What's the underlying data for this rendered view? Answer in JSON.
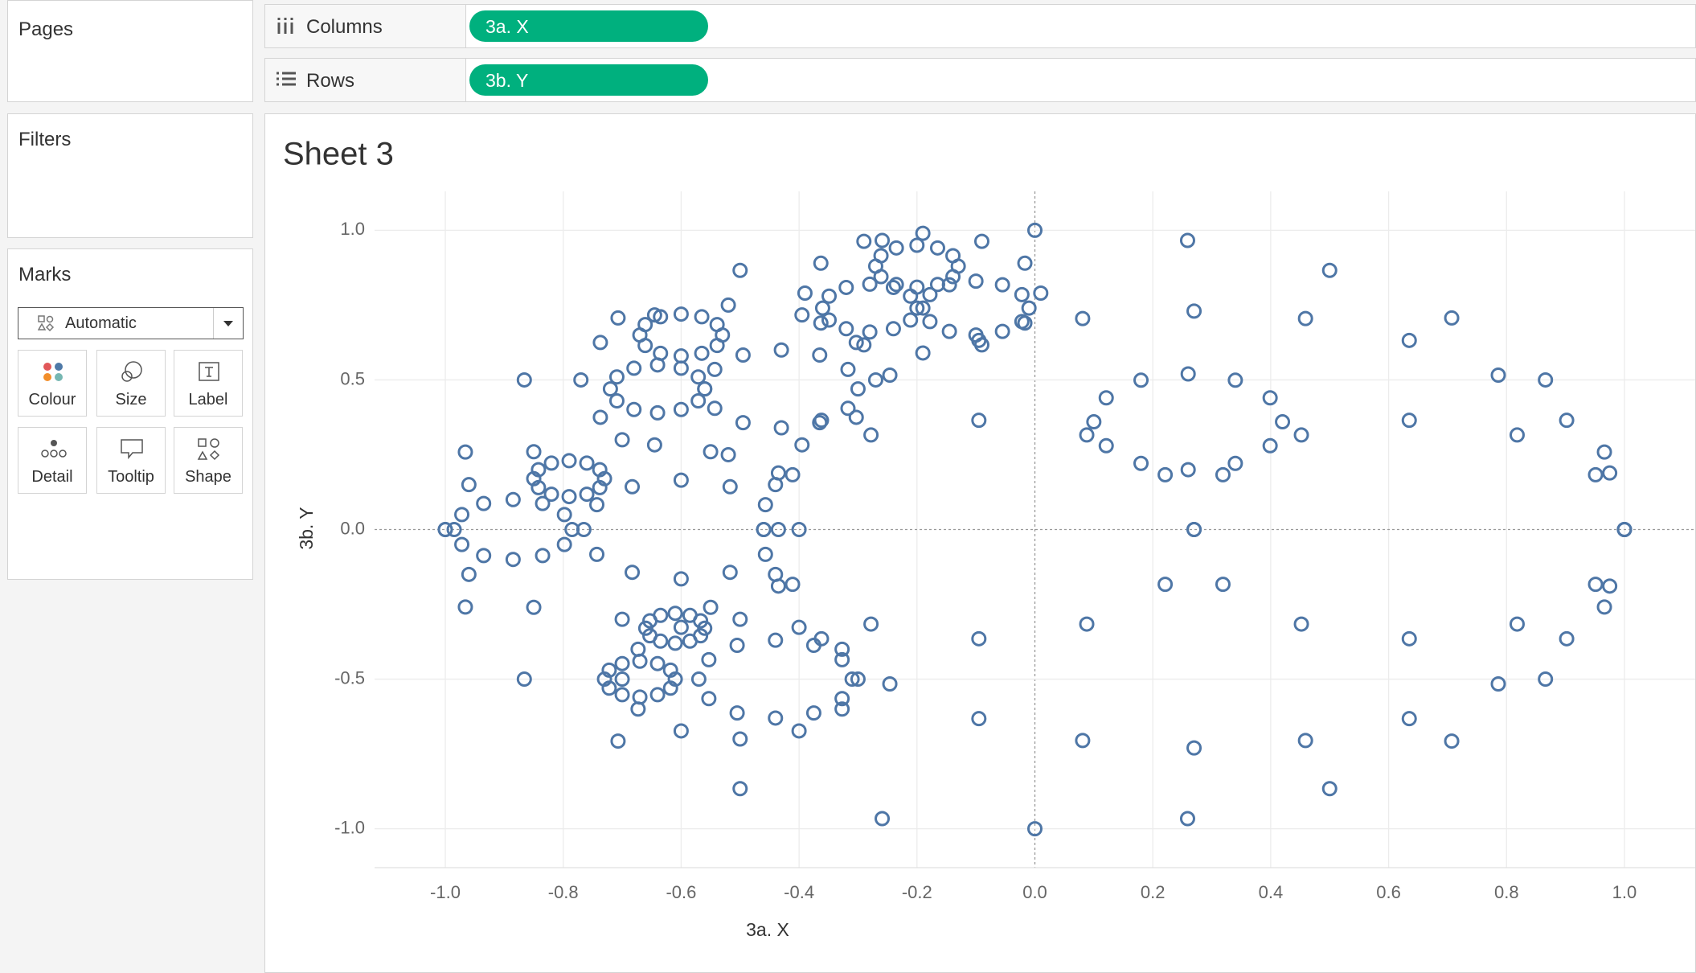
{
  "ui": {
    "pages": "Pages",
    "filters": "Filters",
    "marks": "Marks",
    "mark_type": "Automatic",
    "buttons": [
      "Colour",
      "Size",
      "Label",
      "Detail",
      "Tooltip",
      "Shape"
    ],
    "columns": "Columns",
    "rows": "Rows",
    "columns_pill": "3a. X",
    "rows_pill": "3b. Y"
  },
  "chart_data": {
    "type": "scatter",
    "title": "Sheet 3",
    "x_label": "3a. X",
    "y_label": "3b. Y",
    "color": "#4e76a6",
    "xlim": [
      -1.12,
      1.12
    ],
    "ylim": [
      -1.13,
      1.13
    ],
    "xticks": [
      {
        "value": -1,
        "label": "-1.0"
      },
      {
        "value": -0.8,
        "label": "-0.8"
      },
      {
        "value": -0.6,
        "label": "-0.6"
      },
      {
        "value": -0.4,
        "label": "-0.4"
      },
      {
        "value": -0.2,
        "label": "-0.2"
      },
      {
        "value": 0,
        "label": "0.0"
      },
      0.2,
      0.4,
      0.6,
      0.8,
      {
        "value": 1,
        "label": "1.0"
      }
    ],
    "yticks": [
      {
        "value": -1,
        "label": "-1.0"
      },
      -0.5,
      {
        "value": 0,
        "label": "0.0"
      },
      0.5,
      {
        "value": 1,
        "label": "1.0"
      }
    ],
    "grid": true,
    "x": [
      1,
      0.966,
      0.866,
      0.707,
      0.5,
      0.259,
      0,
      -0.259,
      -0.5,
      -0.707,
      -0.866,
      -0.966,
      -1,
      -0.966,
      -0.866,
      -0.707,
      -0.5,
      -0.259,
      0,
      0.259,
      0.5,
      0.707,
      0.866,
      0.966,
      1,
      0.975,
      0.902,
      0.786,
      0.635,
      0.459,
      0.27,
      0.081,
      -0.095,
      -0.246,
      -0.362,
      -0.435,
      -0.46,
      -0.435,
      -0.362,
      -0.246,
      -0.095,
      0.081,
      0.27,
      0.459,
      0.635,
      0.786,
      0.902,
      0.975,
      1,
      0.951,
      0.818,
      0.635,
      0.452,
      0.319,
      0.27,
      0.319,
      0.452,
      0.635,
      0.818,
      0.951,
      0.27,
      0.221,
      0.088,
      -0.095,
      -0.278,
      -0.411,
      -0.46,
      -0.411,
      -0.278,
      -0.095,
      0.088,
      0.221,
      0.42,
      0.399,
      0.34,
      0.26,
      0.18,
      0.121,
      0.1,
      0.121,
      0.18,
      0.26,
      0.34,
      0.399,
      -0.4,
      -0.44,
      -0.55,
      -0.7,
      -0.85,
      -0.96,
      -1,
      -0.96,
      -0.85,
      -0.7,
      -0.55,
      -0.44,
      -0.435,
      -0.457,
      -0.517,
      -0.6,
      -0.683,
      -0.743,
      -0.765,
      -0.743,
      -0.683,
      -0.6,
      -0.517,
      -0.457,
      -0.785,
      -0.798,
      -0.835,
      -0.885,
      -0.935,
      -0.972,
      -0.985,
      -0.972,
      -0.935,
      -0.885,
      -0.835,
      -0.798,
      -0.73,
      -0.738,
      -0.76,
      -0.79,
      -0.82,
      -0.842,
      -0.85,
      -0.842,
      -0.82,
      -0.79,
      -0.76,
      -0.738,
      -0.27,
      -0.303,
      -0.395,
      -0.52,
      -0.645,
      -0.737,
      -0.77,
      -0.737,
      -0.645,
      -0.52,
      -0.395,
      -0.303,
      -0.3,
      -0.317,
      -0.365,
      -0.43,
      -0.495,
      -0.543,
      -0.56,
      -0.543,
      -0.495,
      -0.43,
      -0.365,
      -0.317,
      -0.56,
      -0.571,
      -0.6,
      -0.64,
      -0.68,
      -0.709,
      -0.72,
      -0.709,
      -0.68,
      -0.64,
      -0.6,
      -0.571,
      -0.53,
      -0.539,
      -0.565,
      -0.6,
      -0.635,
      -0.661,
      -0.67,
      -0.661,
      -0.635,
      -0.6,
      -0.565,
      -0.539,
      0.01,
      -0.017,
      -0.09,
      -0.19,
      -0.29,
      -0.363,
      -0.39,
      -0.363,
      -0.29,
      -0.19,
      -0.09,
      -0.017,
      -0.01,
      -0.022,
      -0.055,
      -0.1,
      -0.145,
      -0.178,
      -0.19,
      -0.178,
      -0.145,
      -0.1,
      -0.055,
      -0.022,
      -0.2,
      -0.211,
      -0.24,
      -0.28,
      -0.32,
      -0.349,
      -0.36,
      -0.349,
      -0.32,
      -0.28,
      -0.24,
      -0.211,
      -0.13,
      -0.139,
      -0.165,
      -0.2,
      -0.235,
      -0.261,
      -0.27,
      -0.261,
      -0.235,
      -0.2,
      -0.165,
      -0.139,
      -0.3,
      -0.327,
      -0.4,
      -0.5,
      -0.6,
      -0.673,
      -0.7,
      -0.673,
      -0.6,
      -0.5,
      -0.4,
      -0.327,
      -0.31,
      -0.327,
      -0.375,
      -0.44,
      -0.505,
      -0.553,
      -0.57,
      -0.553,
      -0.505,
      -0.44,
      -0.375,
      -0.327,
      -0.61,
      -0.618,
      -0.64,
      -0.67,
      -0.7,
      -0.722,
      -0.73,
      -0.722,
      -0.7,
      -0.67,
      -0.64,
      -0.618,
      -0.56,
      -0.567,
      -0.585,
      -0.61,
      -0.635,
      -0.653,
      -0.66,
      -0.653,
      -0.635,
      -0.61,
      -0.585,
      -0.567
    ],
    "values": [
      0,
      0.259,
      0.5,
      0.707,
      0.866,
      0.966,
      1,
      0.966,
      0.866,
      0.707,
      0.5,
      0.259,
      0,
      -0.259,
      -0.5,
      -0.707,
      -0.866,
      -0.966,
      -1,
      -0.966,
      -0.866,
      -0.707,
      -0.5,
      -0.259,
      0,
      0.189,
      0.365,
      0.516,
      0.632,
      0.705,
      0.73,
      0.705,
      0.632,
      0.516,
      0.365,
      0.189,
      0,
      -0.189,
      -0.365,
      -0.516,
      -0.632,
      -0.705,
      -0.73,
      -0.705,
      -0.632,
      -0.516,
      -0.365,
      -0.189,
      0,
      0.183,
      0.316,
      0.365,
      0.316,
      0.183,
      0,
      -0.183,
      -0.316,
      -0.365,
      -0.316,
      -0.183,
      0,
      0.183,
      0.316,
      0.365,
      0.316,
      0.183,
      0,
      -0.183,
      -0.316,
      -0.365,
      -0.316,
      -0.183,
      0.36,
      0.44,
      0.499,
      0.52,
      0.499,
      0.44,
      0.36,
      0.28,
      0.221,
      0.2,
      0.221,
      0.28,
      0,
      0.15,
      0.26,
      0.3,
      0.26,
      0.15,
      0,
      -0.15,
      -0.26,
      -0.3,
      -0.26,
      -0.15,
      0,
      0.083,
      0.143,
      0.165,
      0.143,
      0.083,
      0,
      -0.083,
      -0.143,
      -0.165,
      -0.143,
      -0.083,
      0,
      0.05,
      0.087,
      0.1,
      0.087,
      0.05,
      0,
      -0.05,
      -0.087,
      -0.1,
      -0.087,
      -0.05,
      0.17,
      0.2,
      0.222,
      0.23,
      0.222,
      0.2,
      0.17,
      0.14,
      0.118,
      0.11,
      0.118,
      0.14,
      0.5,
      0.625,
      0.717,
      0.75,
      0.717,
      0.625,
      0.5,
      0.375,
      0.283,
      0.25,
      0.283,
      0.375,
      0.47,
      0.535,
      0.583,
      0.6,
      0.583,
      0.535,
      0.47,
      0.405,
      0.357,
      0.34,
      0.357,
      0.405,
      0.47,
      0.51,
      0.539,
      0.55,
      0.539,
      0.51,
      0.47,
      0.43,
      0.401,
      0.39,
      0.401,
      0.43,
      0.65,
      0.685,
      0.711,
      0.72,
      0.711,
      0.685,
      0.65,
      0.615,
      0.589,
      0.58,
      0.589,
      0.615,
      0.79,
      0.89,
      0.963,
      0.99,
      0.963,
      0.89,
      0.79,
      0.69,
      0.617,
      0.59,
      0.617,
      0.69,
      0.74,
      0.785,
      0.818,
      0.83,
      0.818,
      0.785,
      0.74,
      0.695,
      0.662,
      0.65,
      0.662,
      0.695,
      0.74,
      0.78,
      0.809,
      0.82,
      0.809,
      0.78,
      0.74,
      0.7,
      0.671,
      0.66,
      0.671,
      0.7,
      0.88,
      0.915,
      0.941,
      0.95,
      0.941,
      0.915,
      0.88,
      0.845,
      0.819,
      0.81,
      0.819,
      0.845,
      -0.5,
      -0.4,
      -0.327,
      -0.3,
      -0.327,
      -0.4,
      -0.5,
      -0.6,
      -0.673,
      -0.7,
      -0.673,
      -0.6,
      -0.5,
      -0.435,
      -0.387,
      -0.37,
      -0.387,
      -0.435,
      -0.5,
      -0.565,
      -0.613,
      -0.63,
      -0.613,
      -0.565,
      -0.5,
      -0.47,
      -0.448,
      -0.44,
      -0.448,
      -0.47,
      -0.5,
      -0.53,
      -0.552,
      -0.56,
      -0.552,
      -0.53,
      -0.33,
      -0.305,
      -0.287,
      -0.28,
      -0.287,
      -0.305,
      -0.33,
      -0.355,
      -0.373,
      -0.38,
      -0.373,
      -0.355
    ]
  }
}
